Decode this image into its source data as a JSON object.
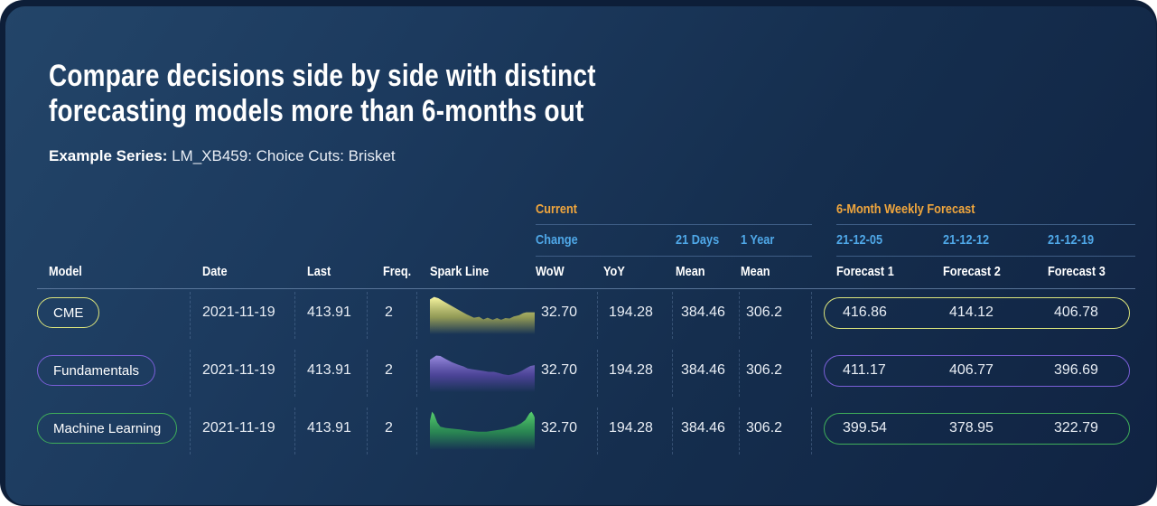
{
  "colors": {
    "page-bg": "#ffffff",
    "card-back": "#0d1e38",
    "card-grad-1": "#234569",
    "card-grad-2": "#1c3a5e",
    "card-grad-3": "#152e4e",
    "card-grad-4": "#102342",
    "header-orange": "#f0a63d",
    "header-blue": "#4fa8e8",
    "text-primary": "#ffffff",
    "text-value": "#e9eef5",
    "line-strong": "#6d89ad",
    "line-soft": "#3e5d85",
    "dash": "#7d9cc4"
  },
  "title": {
    "line1": "Compare decisions side by side with distinct",
    "line2": "forecasting models more than 6-months out"
  },
  "subtitle": {
    "label": "Example Series:",
    "value": " LM_XB459: Choice Cuts: Brisket"
  },
  "table": {
    "groups": {
      "current": "Current",
      "forecast": "6-Month Weekly Forecast"
    },
    "subheaders": {
      "change": "Change",
      "days21": "21 Days",
      "year1": "1 Year",
      "date1": "21-12-05",
      "date2": "21-12-12",
      "date3": "21-12-19"
    },
    "columns": {
      "model": "Model",
      "date": "Date",
      "last": "Last",
      "freq": "Freq.",
      "spark": "Spark Line",
      "wow": "WoW",
      "yoy": "YoY",
      "mean21": "Mean",
      "mean1y": "Mean",
      "f1": "Forecast 1",
      "f2": "Forecast 2",
      "f3": "Forecast 3"
    },
    "rows": [
      {
        "model": "CME",
        "accent": "#dce57c",
        "date": "2021-11-19",
        "last": "413.91",
        "freq": "2",
        "wow": "32.70",
        "yoy": "194.28",
        "mean21": "384.46",
        "mean1y": "306.2",
        "forecasts": [
          "416.86",
          "414.12",
          "406.78"
        ],
        "spark": {
          "top": "#f8f6a2",
          "mid": "#b9bb55",
          "points": [
            [
              0,
              16
            ],
            [
              4,
              10
            ],
            [
              8,
              13
            ],
            [
              14,
              22
            ],
            [
              21,
              32
            ],
            [
              28,
              42
            ],
            [
              35,
              52
            ],
            [
              42,
              60
            ],
            [
              47,
              58
            ],
            [
              51,
              64
            ],
            [
              55,
              60
            ],
            [
              60,
              65
            ],
            [
              64,
              61
            ],
            [
              68,
              65
            ],
            [
              72,
              61
            ],
            [
              76,
              62
            ],
            [
              80,
              57
            ],
            [
              85,
              54
            ],
            [
              89,
              49
            ],
            [
              92,
              47
            ],
            [
              100,
              47
            ]
          ]
        }
      },
      {
        "model": "Fundamentals",
        "accent": "#7a5fd8",
        "date": "2021-11-19",
        "last": "413.91",
        "freq": "2",
        "wow": "32.70",
        "yoy": "194.28",
        "mean21": "384.46",
        "mean1y": "306.2",
        "forecasts": [
          "411.17",
          "406.77",
          "396.69"
        ],
        "spark": {
          "top": "#978ade",
          "mid": "#5b48ab",
          "points": [
            [
              0,
              22
            ],
            [
              6,
              12
            ],
            [
              10,
              13
            ],
            [
              15,
              20
            ],
            [
              21,
              28
            ],
            [
              27,
              34
            ],
            [
              32,
              38
            ],
            [
              36,
              43
            ],
            [
              41,
              45
            ],
            [
              46,
              47
            ],
            [
              51,
              49
            ],
            [
              56,
              51
            ],
            [
              61,
              51
            ],
            [
              66,
              54
            ],
            [
              70,
              57
            ],
            [
              75,
              59
            ],
            [
              79,
              57
            ],
            [
              84,
              53
            ],
            [
              88,
              48
            ],
            [
              92,
              42
            ],
            [
              96,
              37
            ],
            [
              100,
              35
            ]
          ]
        }
      },
      {
        "model": "Machine Learning",
        "accent": "#3fae5a",
        "date": "2021-11-19",
        "last": "413.91",
        "freq": "2",
        "wow": "32.70",
        "yoy": "194.28",
        "mean21": "384.46",
        "mean1y": "306.2",
        "forecasts": [
          "399.54",
          "378.95",
          "322.79"
        ],
        "spark": {
          "top": "#58d06e",
          "mid": "#2e9e52",
          "points": [
            [
              0,
              30
            ],
            [
              2,
              8
            ],
            [
              4,
              14
            ],
            [
              7,
              34
            ],
            [
              10,
              44
            ],
            [
              15,
              47
            ],
            [
              22,
              49
            ],
            [
              30,
              51
            ],
            [
              38,
              54
            ],
            [
              46,
              56
            ],
            [
              54,
              56
            ],
            [
              62,
              53
            ],
            [
              70,
              50
            ],
            [
              76,
              46
            ],
            [
              82,
              42
            ],
            [
              87,
              36
            ],
            [
              91,
              28
            ],
            [
              95,
              12
            ],
            [
              97,
              8
            ],
            [
              99,
              16
            ],
            [
              100,
              22
            ]
          ]
        }
      }
    ]
  }
}
